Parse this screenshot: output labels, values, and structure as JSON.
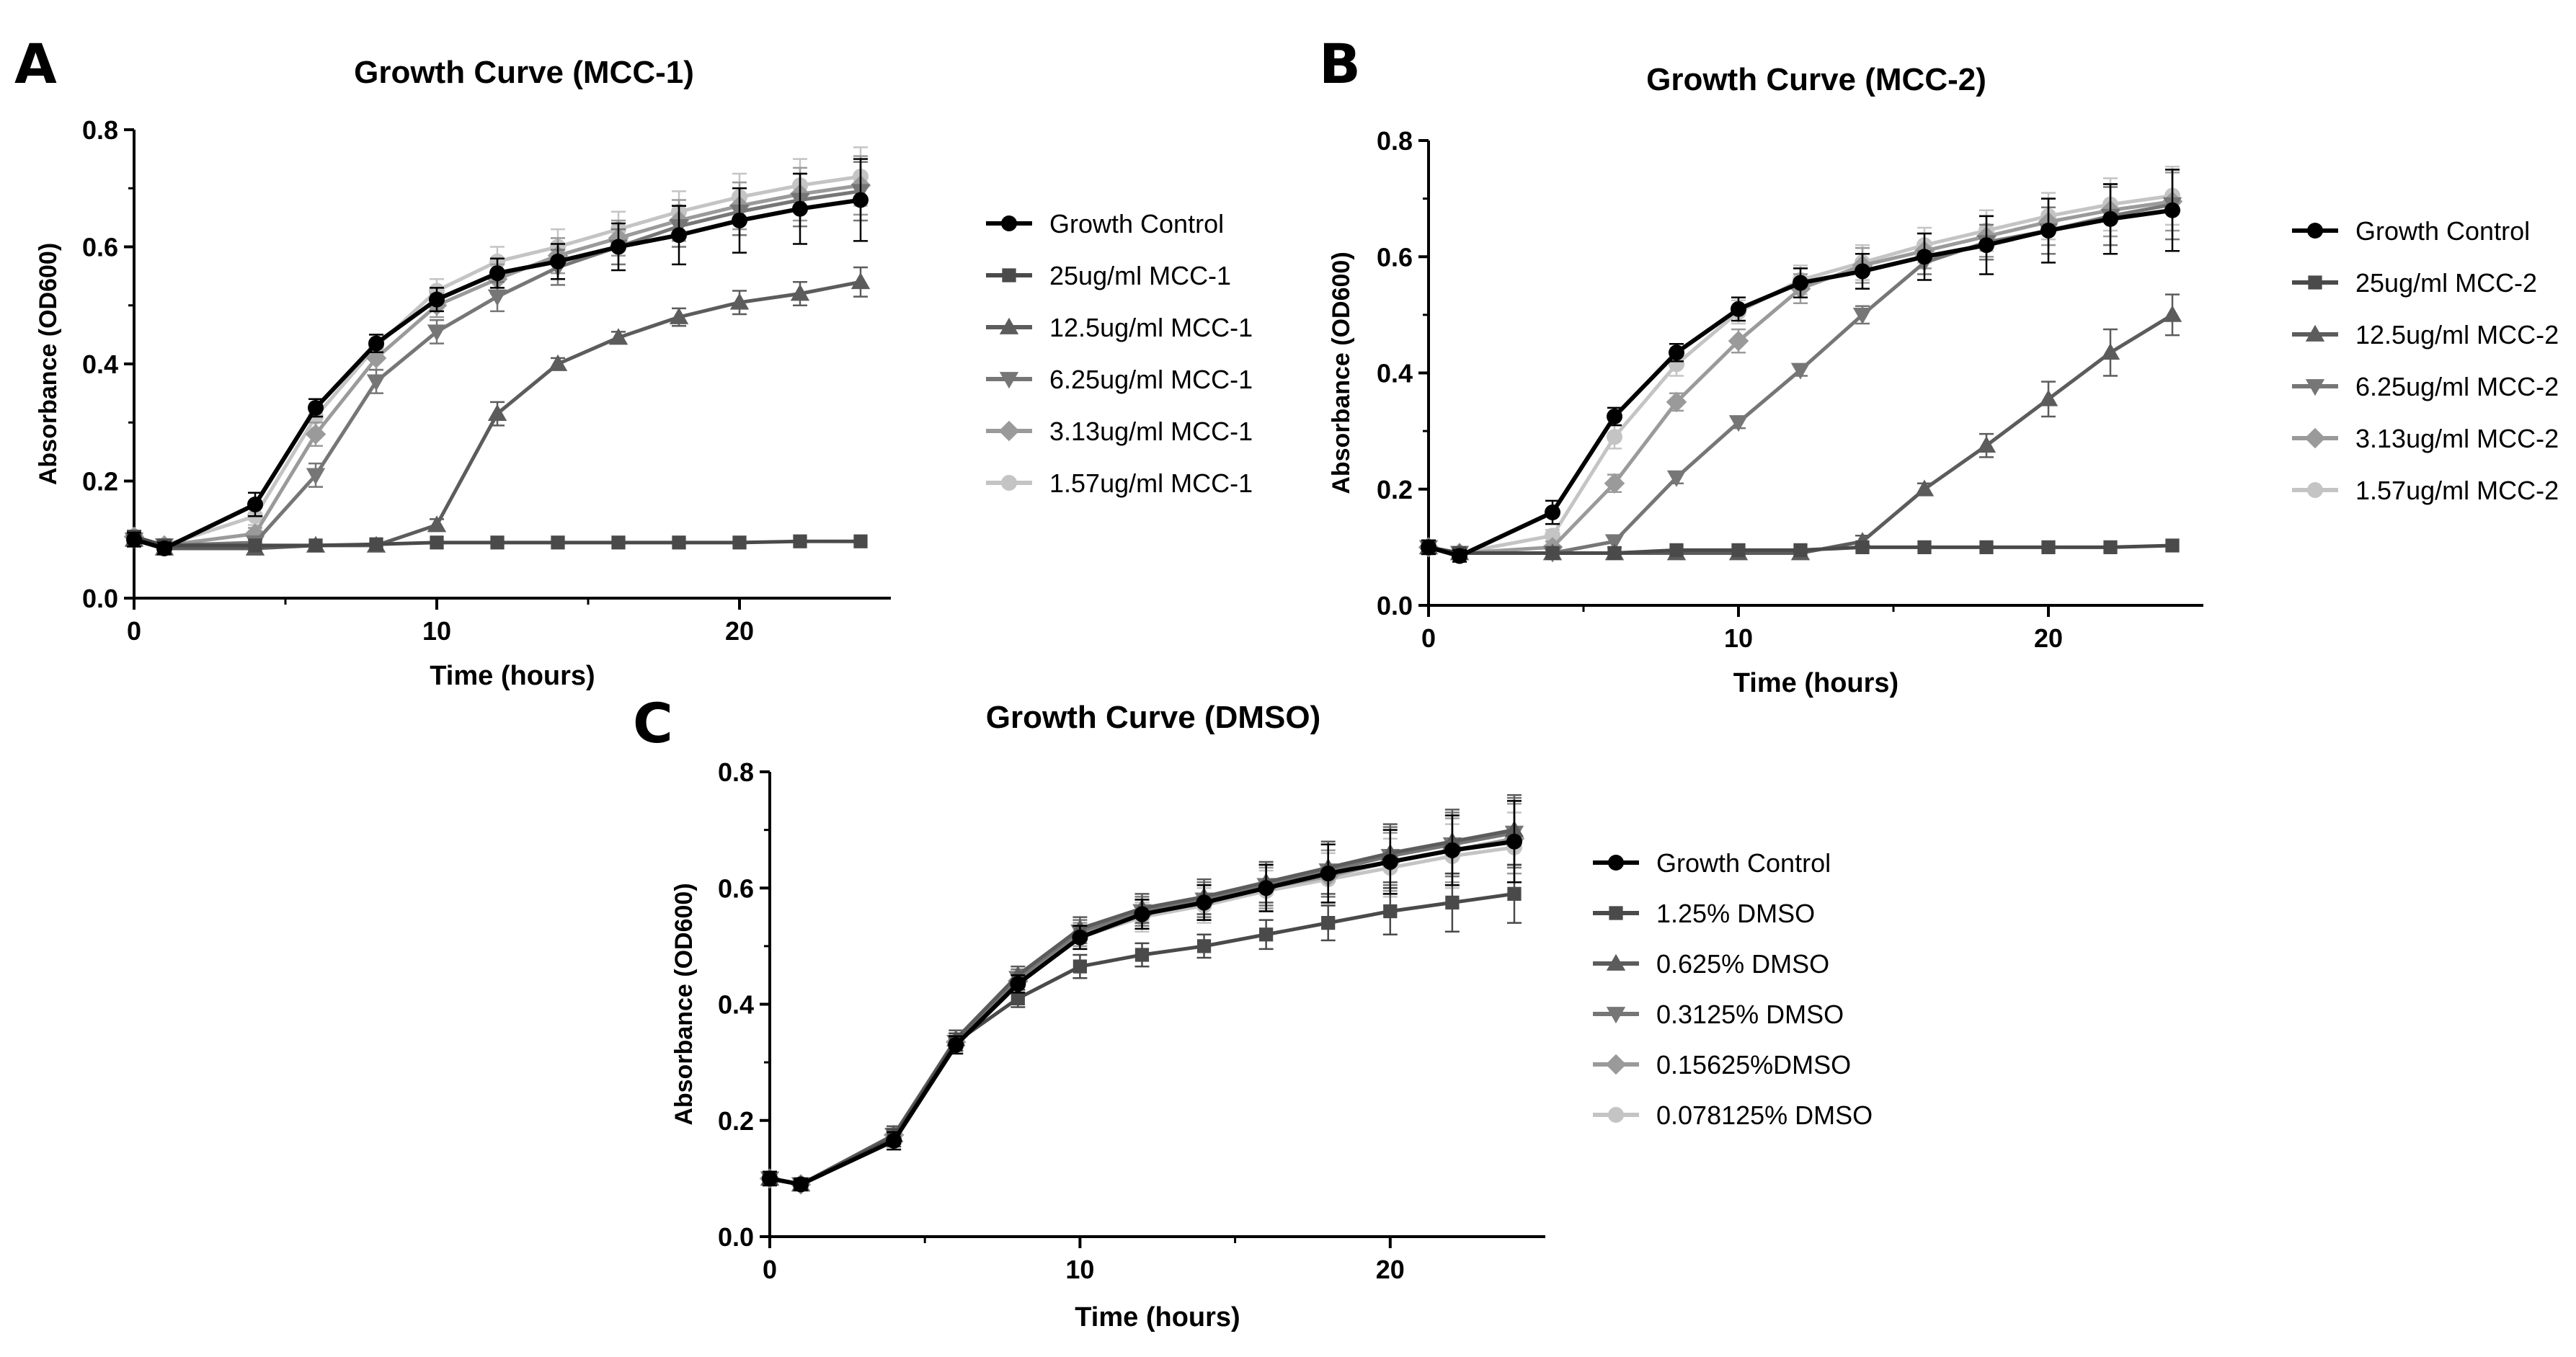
{
  "colors": {
    "control": "#000000",
    "s1": "#4a4a4a",
    "s2": "#5c5c5c",
    "s3": "#767676",
    "s4": "#9a9a9a",
    "s5": "#c4c4c4"
  },
  "markers": [
    "circle",
    "square",
    "triangle-up",
    "triangle-down",
    "diamond",
    "circle"
  ],
  "chart_data": [
    {
      "panel": "A",
      "type": "line",
      "title": "Growth Curve (MCC-1)",
      "xlabel": "Time (hours)",
      "ylabel": "Absorbance (OD600)",
      "xlim": [
        0,
        25
      ],
      "ylim": [
        0,
        0.8
      ],
      "xticks": [
        0,
        10,
        20
      ],
      "yticks": [
        0.0,
        0.2,
        0.4,
        0.6,
        0.8
      ],
      "x": [
        0,
        1,
        4,
        6,
        8,
        10,
        12,
        14,
        16,
        18,
        20,
        22,
        24
      ],
      "series": [
        {
          "name": "Growth Control",
          "values": [
            0.1,
            0.085,
            0.16,
            0.325,
            0.435,
            0.51,
            0.555,
            0.575,
            0.6,
            0.62,
            0.645,
            0.665,
            0.68
          ],
          "err": [
            0.012,
            0.01,
            0.02,
            0.015,
            0.015,
            0.02,
            0.025,
            0.03,
            0.04,
            0.05,
            0.055,
            0.06,
            0.07
          ]
        },
        {
          "name": "25ug/ml MCC-1",
          "values": [
            0.105,
            0.09,
            0.09,
            0.09,
            0.092,
            0.095,
            0.095,
            0.095,
            0.095,
            0.095,
            0.095,
            0.097,
            0.097
          ],
          "err": [
            0.01,
            0.008,
            0.005,
            0.005,
            0.005,
            0.005,
            0.005,
            0.005,
            0.005,
            0.005,
            0.005,
            0.005,
            0.005
          ]
        },
        {
          "name": "12.5ug/ml MCC-1",
          "values": [
            0.1,
            0.085,
            0.085,
            0.09,
            0.09,
            0.125,
            0.315,
            0.4,
            0.445,
            0.48,
            0.505,
            0.52,
            0.54
          ],
          "err": [
            0.01,
            0.008,
            0.005,
            0.005,
            0.005,
            0.01,
            0.02,
            0.01,
            0.01,
            0.015,
            0.02,
            0.02,
            0.025
          ]
        },
        {
          "name": "6.25ug/ml MCC-1",
          "values": [
            0.1,
            0.09,
            0.095,
            0.21,
            0.37,
            0.455,
            0.515,
            0.565,
            0.6,
            0.635,
            0.66,
            0.68,
            0.695
          ],
          "err": [
            0.01,
            0.008,
            0.01,
            0.02,
            0.02,
            0.02,
            0.025,
            0.03,
            0.03,
            0.035,
            0.04,
            0.045,
            0.05
          ]
        },
        {
          "name": "3.13ug/ml MCC-1",
          "values": [
            0.105,
            0.09,
            0.11,
            0.28,
            0.41,
            0.5,
            0.545,
            0.585,
            0.615,
            0.645,
            0.67,
            0.69,
            0.705
          ],
          "err": [
            0.01,
            0.008,
            0.01,
            0.02,
            0.02,
            0.02,
            0.025,
            0.03,
            0.03,
            0.035,
            0.04,
            0.045,
            0.05
          ]
        },
        {
          "name": "1.57ug/ml MCC-1",
          "values": [
            0.105,
            0.09,
            0.14,
            0.31,
            0.43,
            0.525,
            0.575,
            0.6,
            0.63,
            0.66,
            0.685,
            0.705,
            0.72
          ],
          "err": [
            0.01,
            0.008,
            0.015,
            0.02,
            0.02,
            0.02,
            0.025,
            0.03,
            0.03,
            0.035,
            0.04,
            0.045,
            0.05
          ]
        }
      ]
    },
    {
      "panel": "B",
      "type": "line",
      "title": "Growth Curve (MCC-2)",
      "xlabel": "Time (hours)",
      "ylabel": "Absorbance (OD600)",
      "xlim": [
        0,
        25
      ],
      "ylim": [
        0,
        0.8
      ],
      "xticks": [
        0,
        10,
        20
      ],
      "yticks": [
        0.0,
        0.2,
        0.4,
        0.6,
        0.8
      ],
      "x": [
        0,
        1,
        4,
        6,
        8,
        10,
        12,
        14,
        16,
        18,
        20,
        22,
        24
      ],
      "series": [
        {
          "name": "Growth Control",
          "values": [
            0.1,
            0.085,
            0.16,
            0.325,
            0.435,
            0.51,
            0.555,
            0.575,
            0.6,
            0.62,
            0.645,
            0.665,
            0.68
          ],
          "err": [
            0.012,
            0.01,
            0.02,
            0.015,
            0.015,
            0.02,
            0.025,
            0.03,
            0.04,
            0.05,
            0.055,
            0.06,
            0.07
          ]
        },
        {
          "name": "25ug/ml MCC-2",
          "values": [
            0.1,
            0.09,
            0.09,
            0.09,
            0.095,
            0.095,
            0.095,
            0.1,
            0.1,
            0.1,
            0.1,
            0.1,
            0.103
          ],
          "err": [
            0.01,
            0.008,
            0.005,
            0.005,
            0.005,
            0.005,
            0.005,
            0.005,
            0.005,
            0.005,
            0.005,
            0.005,
            0.005
          ]
        },
        {
          "name": "12.5ug/ml MCC-2",
          "values": [
            0.1,
            0.09,
            0.09,
            0.09,
            0.09,
            0.09,
            0.09,
            0.11,
            0.2,
            0.275,
            0.355,
            0.435,
            0.5
          ],
          "err": [
            0.01,
            0.008,
            0.005,
            0.005,
            0.005,
            0.005,
            0.005,
            0.01,
            0.01,
            0.02,
            0.03,
            0.04,
            0.035
          ]
        },
        {
          "name": "6.25ug/ml MCC-2",
          "values": [
            0.1,
            0.09,
            0.09,
            0.11,
            0.22,
            0.315,
            0.405,
            0.5,
            0.59,
            0.625,
            0.645,
            0.67,
            0.69
          ],
          "err": [
            0.01,
            0.008,
            0.005,
            0.01,
            0.01,
            0.01,
            0.01,
            0.015,
            0.02,
            0.03,
            0.04,
            0.05,
            0.06
          ]
        },
        {
          "name": "3.13ug/ml MCC-2",
          "values": [
            0.1,
            0.09,
            0.1,
            0.21,
            0.35,
            0.455,
            0.545,
            0.585,
            0.61,
            0.635,
            0.66,
            0.68,
            0.695
          ],
          "err": [
            0.01,
            0.008,
            0.01,
            0.015,
            0.015,
            0.02,
            0.025,
            0.03,
            0.03,
            0.035,
            0.04,
            0.045,
            0.05
          ]
        },
        {
          "name": "1.57ug/ml MCC-2",
          "values": [
            0.1,
            0.09,
            0.12,
            0.29,
            0.415,
            0.505,
            0.56,
            0.59,
            0.62,
            0.645,
            0.67,
            0.69,
            0.705
          ],
          "err": [
            0.01,
            0.008,
            0.01,
            0.02,
            0.02,
            0.02,
            0.025,
            0.03,
            0.03,
            0.035,
            0.04,
            0.045,
            0.05
          ]
        }
      ]
    },
    {
      "panel": "C",
      "type": "line",
      "title": "Growth Curve (DMSO)",
      "xlabel": "Time (hours)",
      "ylabel": "Absorbance (OD600)",
      "xlim": [
        0,
        25
      ],
      "ylim": [
        0,
        0.8
      ],
      "xticks": [
        0,
        10,
        20
      ],
      "yticks": [
        0.0,
        0.2,
        0.4,
        0.6,
        0.8
      ],
      "x": [
        0,
        1,
        4,
        6,
        8,
        10,
        12,
        14,
        16,
        18,
        20,
        22,
        24
      ],
      "series": [
        {
          "name": "Growth Control",
          "values": [
            0.1,
            0.09,
            0.165,
            0.33,
            0.435,
            0.515,
            0.555,
            0.575,
            0.6,
            0.625,
            0.645,
            0.665,
            0.68
          ],
          "err": [
            0.012,
            0.01,
            0.015,
            0.015,
            0.015,
            0.02,
            0.025,
            0.03,
            0.04,
            0.05,
            0.055,
            0.06,
            0.07
          ]
        },
        {
          "name": "1.25% DMSO",
          "values": [
            0.1,
            0.09,
            0.17,
            0.335,
            0.41,
            0.465,
            0.485,
            0.5,
            0.52,
            0.54,
            0.56,
            0.575,
            0.59
          ],
          "err": [
            0.01,
            0.008,
            0.015,
            0.015,
            0.015,
            0.02,
            0.02,
            0.02,
            0.025,
            0.03,
            0.04,
            0.05,
            0.05
          ]
        },
        {
          "name": "0.625% DMSO",
          "values": [
            0.1,
            0.09,
            0.175,
            0.34,
            0.45,
            0.53,
            0.565,
            0.585,
            0.61,
            0.635,
            0.66,
            0.68,
            0.7
          ],
          "err": [
            0.01,
            0.008,
            0.015,
            0.015,
            0.015,
            0.02,
            0.025,
            0.03,
            0.035,
            0.045,
            0.05,
            0.055,
            0.06
          ]
        },
        {
          "name": "0.3125% DMSO",
          "values": [
            0.1,
            0.09,
            0.175,
            0.335,
            0.445,
            0.525,
            0.56,
            0.58,
            0.605,
            0.63,
            0.655,
            0.675,
            0.695
          ],
          "err": [
            0.01,
            0.008,
            0.015,
            0.015,
            0.015,
            0.02,
            0.025,
            0.03,
            0.035,
            0.045,
            0.05,
            0.055,
            0.06
          ]
        },
        {
          "name": "0.15625%DMSO",
          "values": [
            0.1,
            0.09,
            0.175,
            0.335,
            0.44,
            0.52,
            0.555,
            0.575,
            0.6,
            0.62,
            0.645,
            0.665,
            0.685
          ],
          "err": [
            0.01,
            0.008,
            0.015,
            0.015,
            0.015,
            0.02,
            0.025,
            0.03,
            0.035,
            0.045,
            0.05,
            0.055,
            0.06
          ]
        },
        {
          "name": "0.078125% DMSO",
          "values": [
            0.1,
            0.09,
            0.17,
            0.33,
            0.435,
            0.515,
            0.55,
            0.57,
            0.595,
            0.615,
            0.635,
            0.655,
            0.67
          ],
          "err": [
            0.01,
            0.008,
            0.015,
            0.015,
            0.015,
            0.02,
            0.025,
            0.03,
            0.035,
            0.045,
            0.05,
            0.055,
            0.06
          ]
        }
      ]
    }
  ]
}
